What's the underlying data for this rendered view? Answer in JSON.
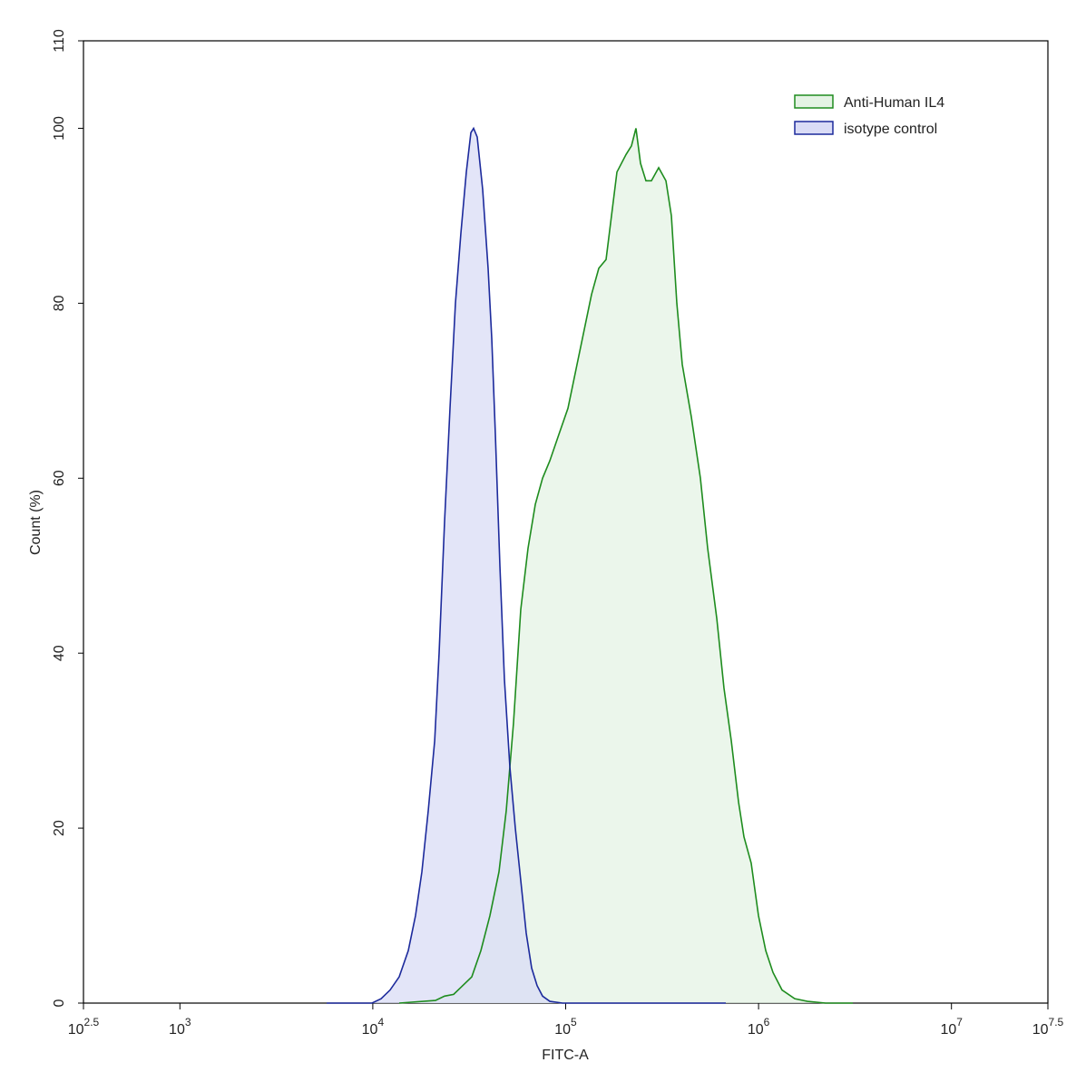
{
  "chart_data": {
    "type": "histogram-overlay",
    "x_label": "FITC-A",
    "y_label": "Count (%)",
    "xscale": "log",
    "xlim": [
      316.2278,
      31622777
    ],
    "ylim": [
      0,
      110
    ],
    "xticks": [
      {
        "value": 316.2278,
        "label": "10",
        "exponent": "2.5"
      },
      {
        "value": 1000,
        "label": "10",
        "exponent": "3"
      },
      {
        "value": 10000,
        "label": "10",
        "exponent": "4"
      },
      {
        "value": 100000,
        "label": "10",
        "exponent": "5"
      },
      {
        "value": 1000000,
        "label": "10",
        "exponent": "6"
      },
      {
        "value": 10000000,
        "label": "10",
        "exponent": "7"
      },
      {
        "value": 31622777,
        "label": "10",
        "exponent": "7.5"
      }
    ],
    "yticks": [
      0,
      20,
      40,
      60,
      80,
      100,
      110
    ],
    "legend": "top-right",
    "series": [
      {
        "name": "Anti-Human IL4",
        "color": "#1e8c1e",
        "fill": "#e4f3e4",
        "x": [
          13705,
          21130,
          23550,
          26250,
          29260,
          32600,
          36340,
          40480,
          45100,
          49190,
          53630,
          58500,
          63800,
          69570,
          75870,
          82770,
          92200,
          102750,
          114500,
          124860,
          136150,
          148500,
          161950,
          172800,
          184400,
          205500,
          219300,
          231400,
          244300,
          260700,
          278200,
          303500,
          331000,
          353200,
          376900,
          402200,
          448200,
          499400,
          544600,
          607000,
          661800,
          721900,
          787300,
          840000,
          915700,
          998900,
          1089500,
          1188000,
          1323000,
          1540000,
          1793000,
          2226000,
          3082000
        ],
        "values": [
          0,
          0.3,
          0.8,
          1,
          2,
          3,
          6,
          10,
          15,
          22,
          32,
          45,
          52,
          57,
          60,
          62,
          65,
          68,
          73,
          77,
          81,
          84,
          85,
          90,
          95,
          97,
          98,
          100,
          96,
          94,
          94,
          95.5,
          94,
          90,
          80,
          73,
          67,
          60,
          52,
          44,
          36,
          30,
          23,
          19,
          16,
          10,
          6,
          3.5,
          1.5,
          0.5,
          0.2,
          0,
          0
        ]
      },
      {
        "name": "isotype control",
        "color": "#1c2a9c",
        "fill": "#dadcf6",
        "x": [
          5763,
          9903,
          11036,
          12297,
          13705,
          15275,
          16652,
          17965,
          19388,
          20935,
          22070,
          23550,
          25135,
          26820,
          28620,
          30540,
          32250,
          33310,
          34780,
          37120,
          39610,
          41370,
          43200,
          45600,
          48130,
          51360,
          54810,
          58500,
          62430,
          66620,
          71090,
          75870,
          82770,
          96280,
          228900,
          676300
        ],
        "values": [
          0,
          0,
          0.5,
          1.5,
          3,
          6,
          10,
          15,
          22,
          30,
          40,
          55,
          68,
          80,
          88,
          95,
          99.5,
          100,
          99,
          93,
          84,
          76,
          65,
          50,
          37,
          27,
          20,
          14,
          8,
          4,
          2,
          0.8,
          0.2,
          0,
          0,
          0
        ]
      }
    ]
  }
}
